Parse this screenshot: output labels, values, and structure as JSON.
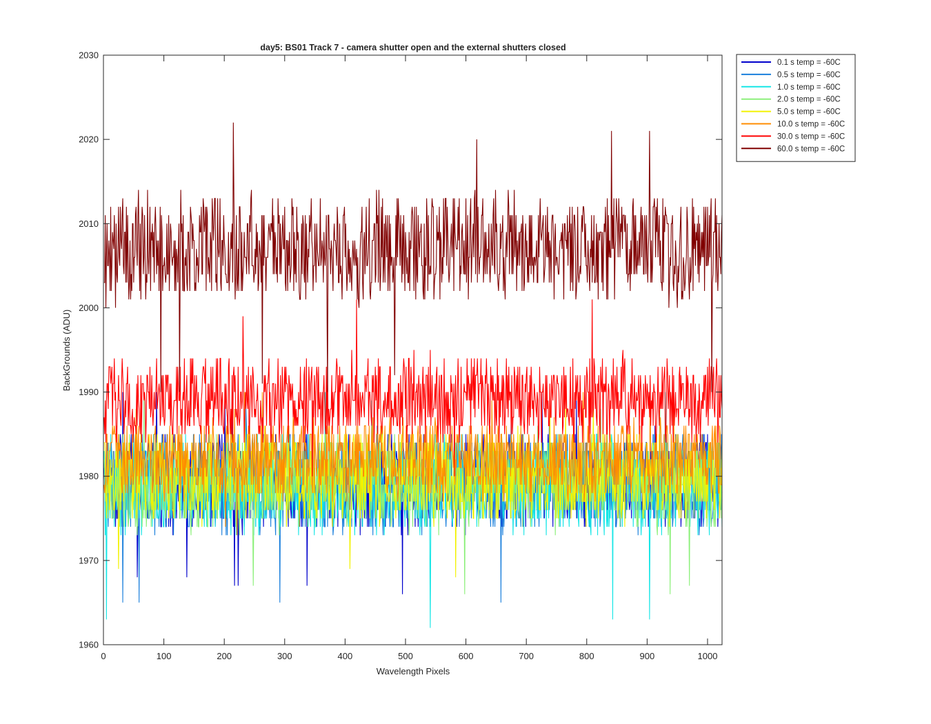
{
  "chart_data": {
    "type": "line",
    "title": "day5: BS01  Track 7 - camera shutter open and the external shutters closed",
    "xlabel": "Wavelength Pixels",
    "ylabel": "BackGrounds (ADU)",
    "xlim": [
      0,
      1024
    ],
    "ylim": [
      1960,
      2030
    ],
    "xticks": [
      0,
      100,
      200,
      300,
      400,
      500,
      600,
      700,
      800,
      900,
      1000
    ],
    "yticks": [
      1960,
      1970,
      1980,
      1990,
      2000,
      2010,
      2020,
      2030
    ],
    "grid": false,
    "legend_position": "outside-top-right",
    "x_range": [
      1,
      1024
    ],
    "series": [
      {
        "name": "0.1 s temp = -60C",
        "color": "#0000cc",
        "mean": 1979.5,
        "spread": 4.5,
        "min": 1966,
        "max": 1991
      },
      {
        "name": "0.5 s temp = -60C",
        "color": "#1a7fdc",
        "mean": 1979.2,
        "spread": 4.6,
        "min": 1964,
        "max": 1990
      },
      {
        "name": "1.0 s temp = -60C",
        "color": "#17e6e6",
        "mean": 1979.0,
        "spread": 4.6,
        "min": 1962,
        "max": 1990
      },
      {
        "name": "2.0 s temp = -60C",
        "color": "#8cf07a",
        "mean": 1979.3,
        "spread": 4.4,
        "min": 1966,
        "max": 1990
      },
      {
        "name": "5.0 s temp = -60C",
        "color": "#f2f200",
        "mean": 1979.8,
        "spread": 4.2,
        "min": 1967,
        "max": 1990
      },
      {
        "name": "10.0 s temp = -60C",
        "color": "#ff8c00",
        "mean": 1982.0,
        "spread": 3.6,
        "min": 1972,
        "max": 1990
      },
      {
        "name": "30.0 s temp = -60C",
        "color": "#ff0000",
        "mean": 1989.0,
        "spread": 4.0,
        "min": 1978,
        "max": 2001
      },
      {
        "name": "60.0 s temp = -60C",
        "color": "#800000",
        "mean": 2007.0,
        "spread": 5.0,
        "min": 1990,
        "max": 2022
      }
    ]
  }
}
